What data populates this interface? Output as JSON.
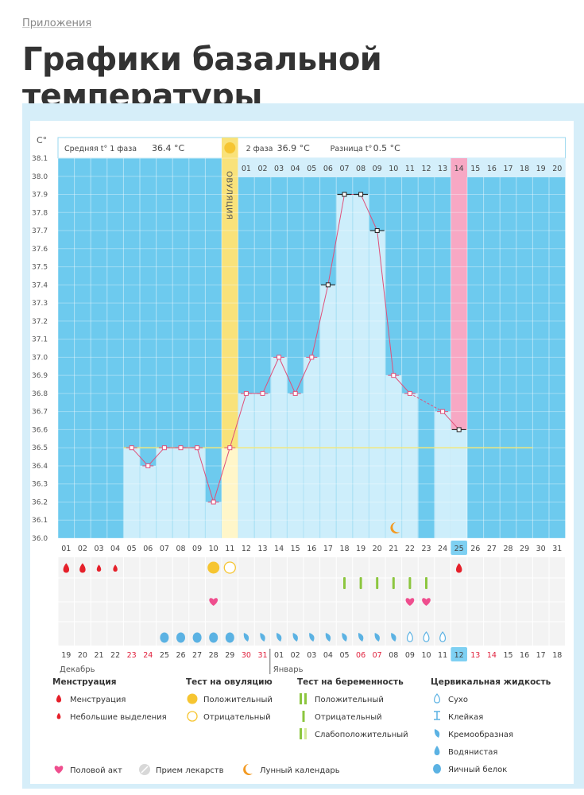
{
  "breadcrumb": "Приложения",
  "page_title": "Графики базальной температуры",
  "chart_data": {
    "type": "line",
    "title": "",
    "ylabel": "C°",
    "ylim": [
      36.0,
      38.1
    ],
    "y_ticks": [
      "38.1",
      "38.0",
      "37.9",
      "37.8",
      "37.7",
      "37.6",
      "37.5",
      "37.4",
      "37.3",
      "37.2",
      "37.1",
      "37.0",
      "36.9",
      "36.8",
      "36.7",
      "36.6",
      "36.5",
      "36.4",
      "36.3",
      "36.2",
      "36.1",
      "36.0"
    ],
    "phase1_label": "Средняя t° 1 фаза",
    "phase1_avg": "36.4 °C",
    "phase2_label": "2 фаза",
    "phase2_avg": "36.9 °C",
    "diff_label": "Разница t°",
    "diff_value": "0.5 °C",
    "ovulation_label": "ОВУЛЯЦИЯ",
    "cover_line": 36.5,
    "phase2_days": [
      "01",
      "02",
      "03",
      "04",
      "05",
      "06",
      "07",
      "08",
      "09",
      "10",
      "11",
      "12",
      "13",
      "14",
      "15",
      "16",
      "17",
      "18",
      "19",
      "20"
    ],
    "cycle_days": [
      "01",
      "02",
      "03",
      "04",
      "05",
      "06",
      "07",
      "08",
      "09",
      "10",
      "11",
      "12",
      "13",
      "14",
      "15",
      "16",
      "17",
      "18",
      "19",
      "20",
      "21",
      "22",
      "23",
      "24",
      "25",
      "26",
      "27",
      "28",
      "29",
      "30",
      "31"
    ],
    "highlight_cycle_day": "25",
    "values": [
      null,
      null,
      null,
      null,
      36.5,
      36.4,
      36.5,
      36.5,
      36.5,
      36.2,
      36.5,
      36.8,
      36.8,
      37.0,
      36.8,
      37.0,
      37.4,
      37.9,
      37.9,
      37.7,
      36.9,
      36.8,
      null,
      36.7,
      36.6,
      null,
      null,
      null,
      null,
      null,
      null
    ],
    "calendar_dates": [
      "19",
      "20",
      "21",
      "22",
      "23",
      "24",
      "25",
      "26",
      "27",
      "28",
      "29",
      "30",
      "31",
      "01",
      "02",
      "03",
      "04",
      "05",
      "06",
      "07",
      "08",
      "09",
      "10",
      "11",
      "12",
      "13",
      "14",
      "15",
      "16",
      "17",
      "18"
    ],
    "weekend_indices": [
      4,
      5,
      11,
      12,
      18,
      19,
      25,
      26
    ],
    "month_labels": [
      "Декабрь",
      "Январь"
    ],
    "highlight_calendar_date": "12",
    "menstruation_days": [
      1,
      2,
      3,
      4,
      25
    ],
    "ovulation_test": {
      "positive_day": 10,
      "negative_day": 11
    },
    "pregnancy_test_days": [
      18,
      19,
      20,
      21,
      22,
      23
    ],
    "intercourse_days": [
      10,
      22,
      23
    ],
    "cervical_fluid": {
      "egg_white": [
        7,
        8,
        9,
        10,
        11
      ],
      "creamy": [
        12,
        13,
        14,
        15,
        16,
        17,
        18,
        19,
        20,
        21
      ],
      "dry": [
        22,
        23,
        24
      ]
    },
    "lunar_day": 21,
    "legend": {
      "menstruation": {
        "title": "Менструация",
        "items": [
          "Менструация",
          "Небольшие выделения"
        ]
      },
      "ovulation_test": {
        "title": "Тест на овуляцию",
        "items": [
          "Положительный",
          "Отрицательный"
        ]
      },
      "pregnancy_test": {
        "title": "Тест на беременность",
        "items": [
          "Положительный",
          "Отрицательный",
          "Слабоположительный"
        ]
      },
      "cervical_fluid": {
        "title": "Цервикальная жидкость",
        "items": [
          "Сухо",
          "Клейкая",
          "Кремообразная",
          "Водянистая",
          "Яичный белок"
        ]
      },
      "other": [
        "Половой акт",
        "Прием лекарств",
        "Лунный календарь"
      ]
    },
    "colors": {
      "sky": "#6dcaee",
      "bar": "#cdeefb",
      "line": "#e0507a",
      "ovulation": "#f9e27a",
      "highlight": "#f7a8c4",
      "cover": "#f2e87c",
      "drop": "#e5202a",
      "heart": "#ef4e8e",
      "test": "#8cc63f",
      "moon": "#f39a22",
      "fluid": "#5bb2e3"
    }
  }
}
